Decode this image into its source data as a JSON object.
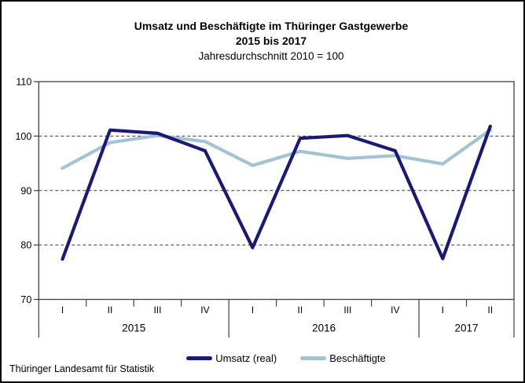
{
  "title": {
    "line1": "Umsatz und Beschäftigte im Thüringer Gastgewerbe",
    "line2": "2015 bis 2017",
    "subtitle": "Jahresdurchschnitt 2010 = 100"
  },
  "footer": "Thüringer Landesamt für Statistik",
  "legend": [
    {
      "label": "Umsatz (real)",
      "color": "#1a1a75"
    },
    {
      "label": "Beschäftigte",
      "color": "#a3c2d4"
    }
  ],
  "colors": {
    "umsatz_line": "#1a1a75",
    "beschaeftigte_line": "#a3c2d4",
    "axis": "#404040",
    "gridline": "#3a3a3a"
  },
  "chart_data": {
    "type": "line",
    "title": "Umsatz und Beschäftigte im Thüringer Gastgewerbe 2015 bis 2017",
    "subtitle": "Jahresdurchschnitt 2010 = 100",
    "x_quarters": [
      "I",
      "II",
      "III",
      "IV",
      "I",
      "II",
      "III",
      "IV",
      "I",
      "II"
    ],
    "year_groups": [
      {
        "label": "2015",
        "quarters": 4
      },
      {
        "label": "2016",
        "quarters": 4
      },
      {
        "label": "2017",
        "quarters": 2
      }
    ],
    "series": [
      {
        "name": "Umsatz (real)",
        "color": "#1a1a75",
        "values": [
          77.4,
          101.1,
          100.5,
          97.3,
          79.5,
          99.6,
          100.1,
          97.3,
          77.5,
          101.8
        ]
      },
      {
        "name": "Beschäftigte",
        "color": "#a3c2d4",
        "values": [
          94.1,
          98.8,
          100.1,
          99.0,
          94.6,
          97.2,
          95.9,
          96.4,
          94.9,
          101.1
        ]
      }
    ],
    "ylim": [
      70,
      110
    ],
    "yticks": [
      70,
      80,
      90,
      100,
      110
    ],
    "grid": "horizontal dashed at 80, 90, 100",
    "legend_position": "bottom"
  }
}
